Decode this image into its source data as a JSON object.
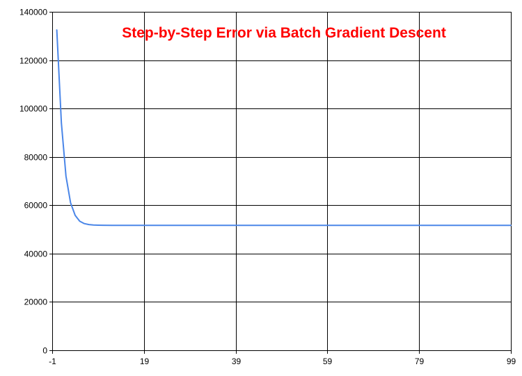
{
  "chart_data": {
    "type": "line",
    "title": "Step-by-Step Error via Batch Gradient Descent",
    "xlabel": "",
    "ylabel": "",
    "xlim": [
      -1,
      99
    ],
    "ylim": [
      0,
      140000
    ],
    "x_ticks": [
      -1,
      19,
      39,
      59,
      79,
      99
    ],
    "y_ticks": [
      0,
      20000,
      40000,
      60000,
      80000,
      100000,
      120000,
      140000
    ],
    "grid": true,
    "legend": "none",
    "series": [
      {
        "color": "#4a86e8",
        "x": [
          0,
          1,
          2,
          3,
          4,
          5,
          6,
          7,
          8,
          9,
          10,
          12,
          15,
          20,
          30,
          40,
          50,
          60,
          70,
          80,
          90,
          99
        ],
        "y": [
          132500,
          94000,
          72000,
          61000,
          55800,
          53400,
          52400,
          52000,
          51800,
          51750,
          51720,
          51700,
          51700,
          51700,
          51700,
          51700,
          51700,
          51700,
          51700,
          51700,
          51700,
          51700
        ]
      }
    ]
  },
  "colors": {
    "title": "#ff0000",
    "grid": "#000000",
    "line": "#4a86e8"
  }
}
